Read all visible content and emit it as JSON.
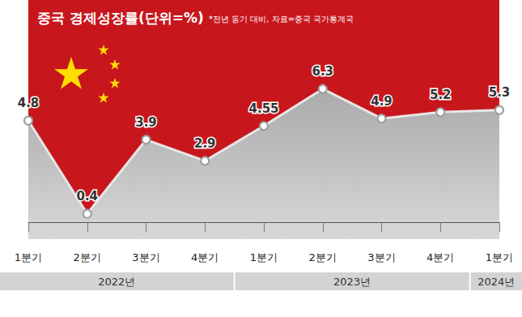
{
  "chart_data": {
    "type": "line",
    "title": "중국 경제성장률(단위=%)",
    "subtitle": "*전년 동기 대비, 자료=중국 국가통계국",
    "categories": [
      "1분기",
      "2분기",
      "3분기",
      "4분기",
      "1분기",
      "2분기",
      "3분기",
      "4분기",
      "1분기"
    ],
    "group_labels": [
      "2022년",
      "2022년",
      "2022년",
      "2022년",
      "2023년",
      "2023년",
      "2023년",
      "2023년",
      "2024년"
    ],
    "values": [
      4.8,
      0.4,
      3.9,
      2.9,
      4.55,
      6.3,
      4.9,
      5.2,
      5.3
    ],
    "color": "#c8161d",
    "ylim": [
      -0.8,
      10.5
    ],
    "data_labels": true,
    "tick_labels": "x",
    "grid": false,
    "marker": "circle"
  }
}
